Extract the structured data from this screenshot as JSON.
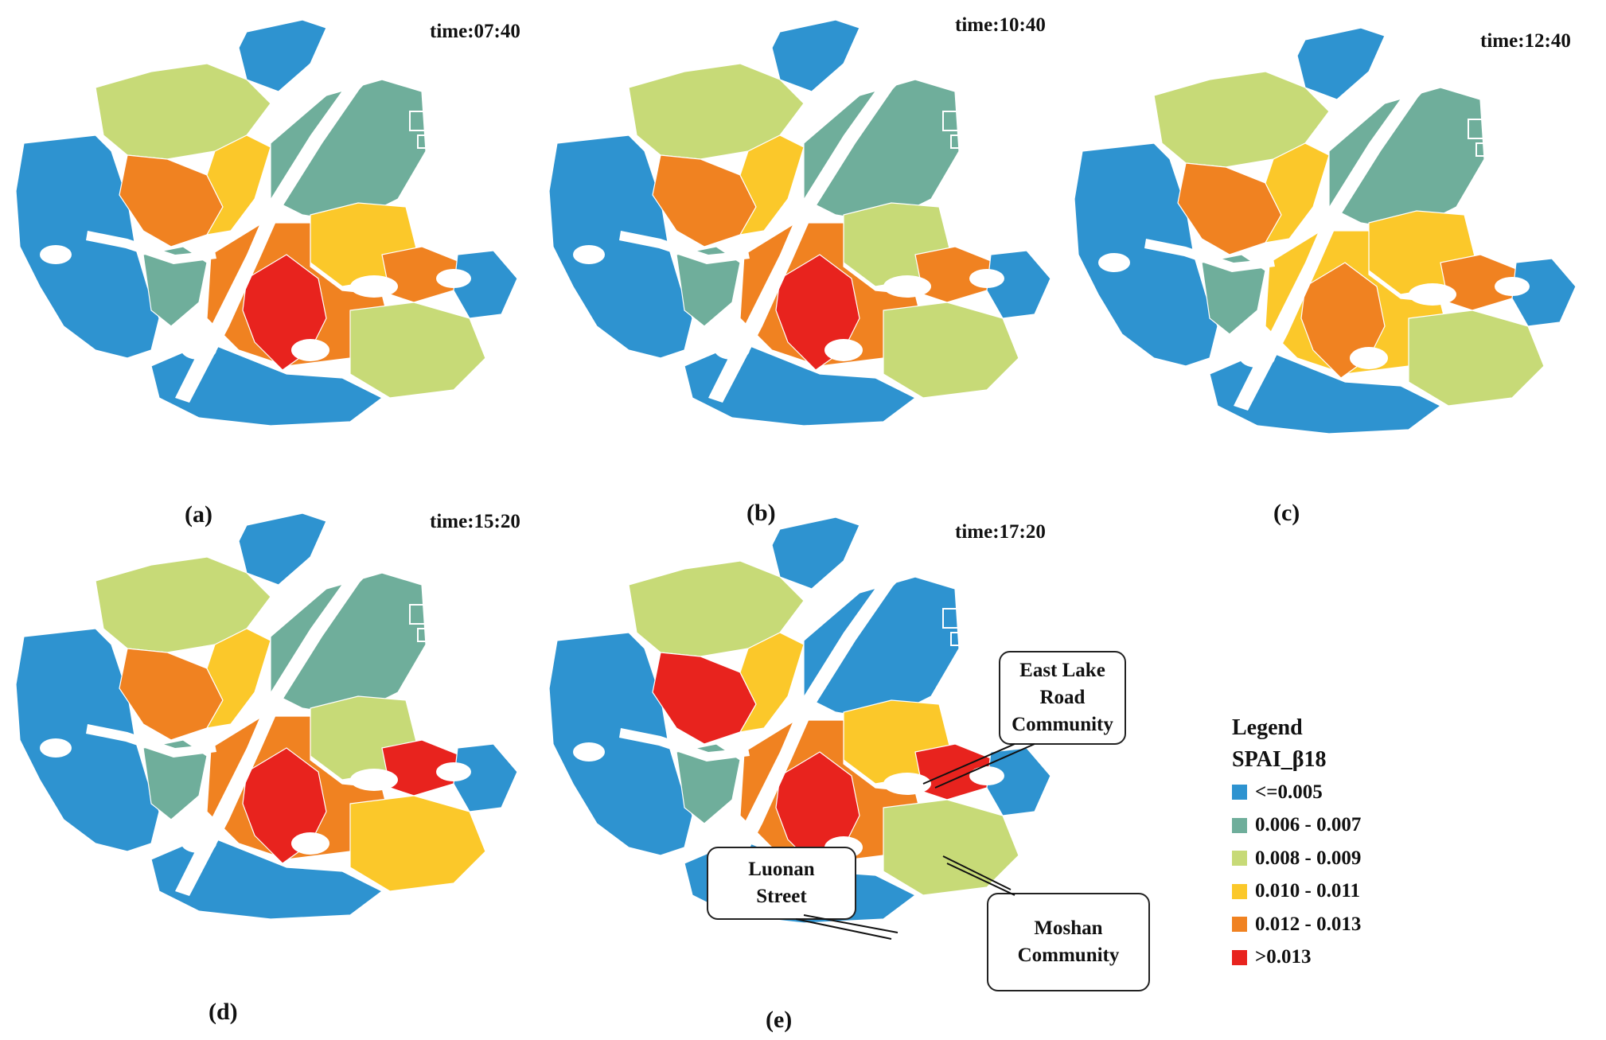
{
  "colors": {
    "c1": "#2e93d0",
    "c2": "#6fae9b",
    "c3": "#c7da77",
    "c4": "#fbc82a",
    "c5": "#f08221",
    "c6": "#e8231e",
    "boundary": "#ffffff"
  },
  "panels": [
    {
      "id": "a",
      "label": "(a)",
      "time": "time:07:40",
      "zones": {
        "upstream": "c1",
        "north": "c3",
        "west": "c1",
        "hankouCore": "c5",
        "hanyang": "c2",
        "wuchangNorth": "c2",
        "eastLake": "c4",
        "center": "c6",
        "centerRing": "c5",
        "eastArm": "c5",
        "south": "c1",
        "southEast": "c3",
        "farEast": "c1",
        "westCore": "c4"
      }
    },
    {
      "id": "b",
      "label": "(b)",
      "time": "time:10:40",
      "zones": {
        "upstream": "c1",
        "north": "c3",
        "west": "c1",
        "hankouCore": "c5",
        "hanyang": "c2",
        "wuchangNorth": "c2",
        "eastLake": "c3",
        "center": "c6",
        "centerRing": "c5",
        "eastArm": "c5",
        "south": "c1",
        "southEast": "c3",
        "farEast": "c1",
        "westCore": "c4"
      }
    },
    {
      "id": "c",
      "label": "(c)",
      "time": "time:12:40",
      "zones": {
        "upstream": "c1",
        "north": "c3",
        "west": "c1",
        "hankouCore": "c5",
        "hanyang": "c2",
        "wuchangNorth": "c2",
        "eastLake": "c4",
        "center": "c5",
        "centerRing": "c4",
        "eastArm": "c5",
        "south": "c1",
        "southEast": "c3",
        "farEast": "c1",
        "westCore": "c4"
      }
    },
    {
      "id": "d",
      "label": "(d)",
      "time": "time:15:20",
      "zones": {
        "upstream": "c1",
        "north": "c3",
        "west": "c1",
        "hankouCore": "c5",
        "hanyang": "c2",
        "wuchangNorth": "c2",
        "eastLake": "c3",
        "center": "c6",
        "centerRing": "c5",
        "eastArm": "c6",
        "south": "c1",
        "southEast": "c4",
        "farEast": "c1",
        "westCore": "c4"
      }
    },
    {
      "id": "e",
      "label": "(e)",
      "time": "time:17:20",
      "zones": {
        "upstream": "c1",
        "north": "c3",
        "west": "c1",
        "hankouCore": "c6",
        "hanyang": "c2",
        "wuchangNorth": "c1",
        "eastLake": "c4",
        "center": "c6",
        "centerRing": "c5",
        "eastArm": "c6",
        "south": "c1",
        "southEast": "c3",
        "farEast": "c1",
        "westCore": "c4"
      }
    }
  ],
  "callouts": [
    {
      "id": "east-lake",
      "lines": [
        "East Lake",
        "Road",
        "Community"
      ]
    },
    {
      "id": "luonan",
      "lines": [
        "Luonan",
        "Street"
      ]
    },
    {
      "id": "moshan",
      "lines": [
        "Moshan",
        "Community"
      ]
    }
  ],
  "legend": {
    "title": "Legend",
    "field": "SPAI_β18",
    "classes": [
      {
        "label": "<=0.005",
        "color": "c1"
      },
      {
        "label": "0.006 - 0.007",
        "color": "c2"
      },
      {
        "label": "0.008 - 0.009",
        "color": "c3"
      },
      {
        "label": "0.010 - 0.011",
        "color": "c4"
      },
      {
        "label": "0.012 - 0.013",
        "color": "c5"
      },
      {
        "label": ">0.013",
        "color": "c6"
      }
    ]
  }
}
